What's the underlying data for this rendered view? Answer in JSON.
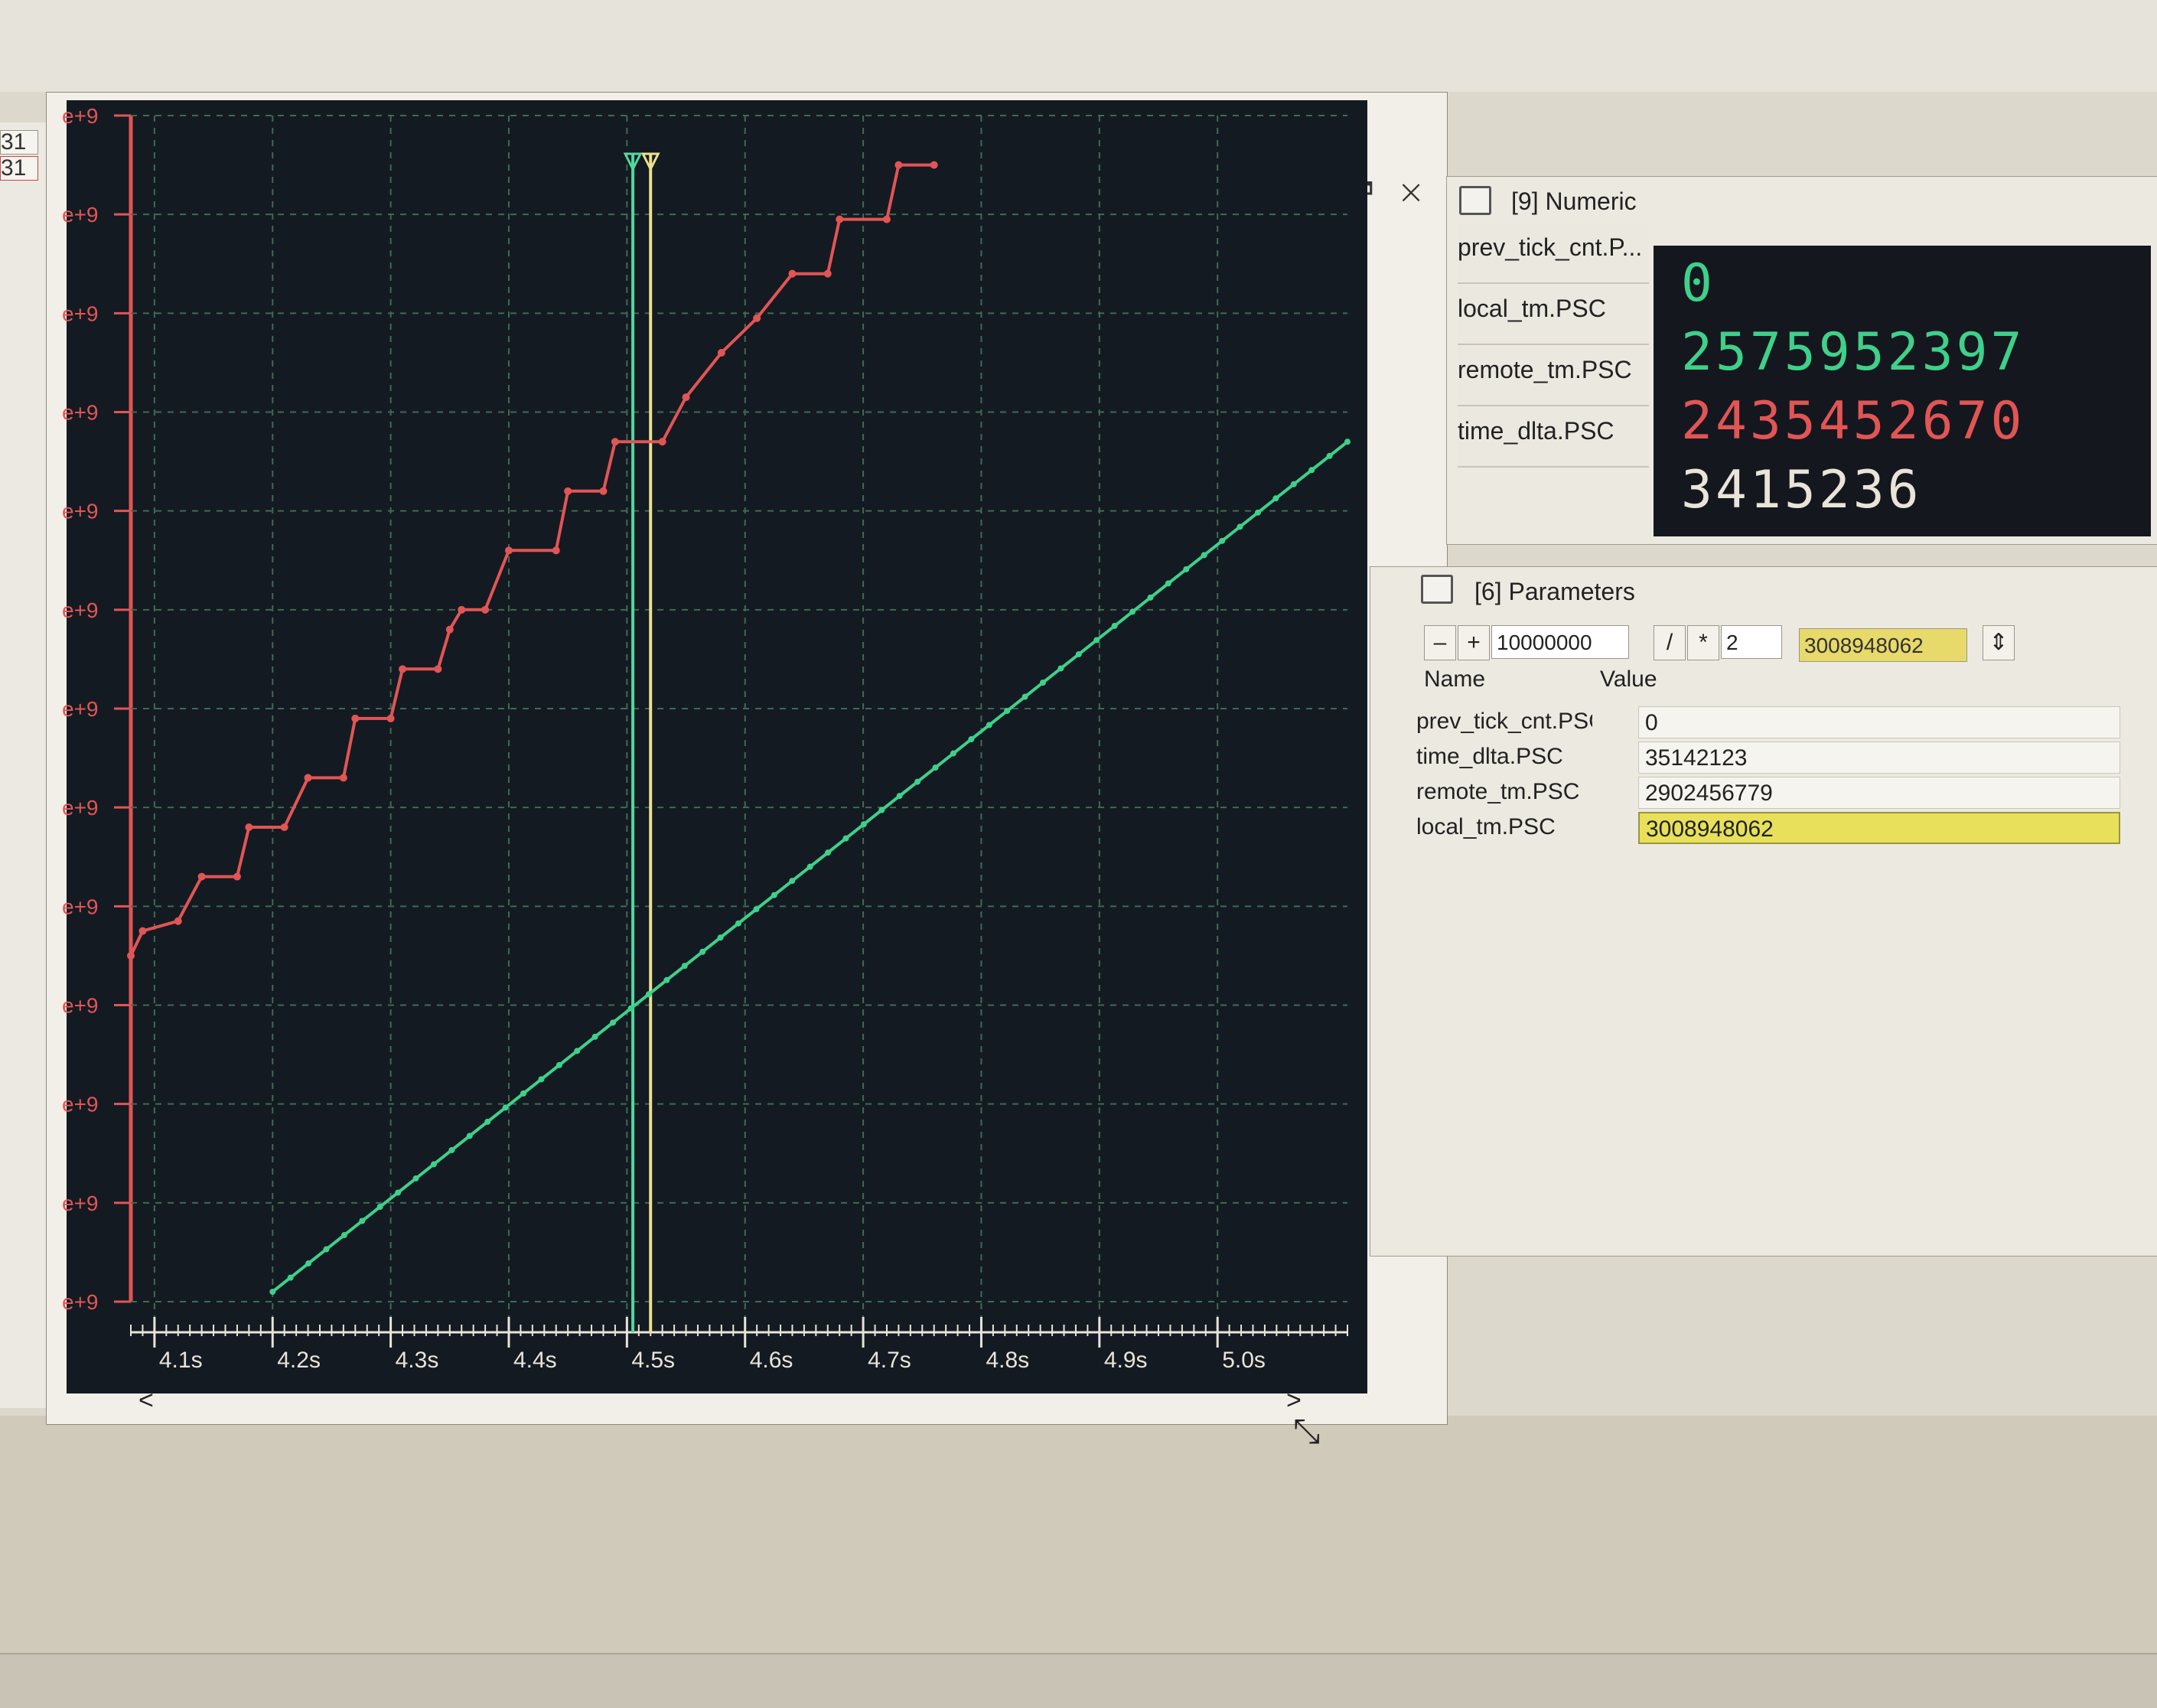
{
  "left_strip": {
    "tabs": [
      "31",
      "31"
    ]
  },
  "chart_window": {
    "controls": {
      "minimize": "–",
      "restore": "🗗",
      "close": "✕"
    },
    "scroll_left": "<",
    "scroll_right": ">"
  },
  "chart_data": {
    "type": "line",
    "x_tick_labels": [
      "4.1s",
      "4.2s",
      "4.3s",
      "4.4s",
      "4.5s",
      "4.6s",
      "4.7s",
      "4.8s",
      "4.9s",
      "5.0s"
    ],
    "x_range": [
      4.08,
      5.11
    ],
    "y_tick_labels": [
      "e+9",
      "e+9",
      "e+9",
      "e+9",
      "e+9",
      "e+9",
      "e+9",
      "e+9",
      "e+9",
      "e+9",
      "e+9",
      "e+9",
      "e+9"
    ],
    "y_range": [
      0,
      12
    ],
    "grid": true,
    "cursors": [
      {
        "x": 4.505,
        "color": "#4fd9a0"
      },
      {
        "x": 4.52,
        "color": "#e8e090"
      }
    ],
    "series": [
      {
        "color": "#e25555",
        "style": "steps",
        "points": [
          [
            4.08,
            3.5
          ],
          [
            4.09,
            3.75
          ],
          [
            4.12,
            3.85
          ],
          [
            4.14,
            4.3
          ],
          [
            4.17,
            4.3
          ],
          [
            4.18,
            4.8
          ],
          [
            4.21,
            4.8
          ],
          [
            4.23,
            5.3
          ],
          [
            4.26,
            5.3
          ],
          [
            4.27,
            5.9
          ],
          [
            4.3,
            5.9
          ],
          [
            4.31,
            6.4
          ],
          [
            4.34,
            6.4
          ],
          [
            4.35,
            6.8
          ],
          [
            4.36,
            7.0
          ],
          [
            4.38,
            7.0
          ],
          [
            4.4,
            7.6
          ],
          [
            4.44,
            7.6
          ],
          [
            4.45,
            8.2
          ],
          [
            4.48,
            8.2
          ],
          [
            4.49,
            8.7
          ],
          [
            4.53,
            8.7
          ],
          [
            4.55,
            9.15
          ],
          [
            4.58,
            9.6
          ],
          [
            4.61,
            9.95
          ],
          [
            4.64,
            10.4
          ],
          [
            4.67,
            10.4
          ],
          [
            4.68,
            10.95
          ],
          [
            4.72,
            10.95
          ],
          [
            4.73,
            11.5
          ],
          [
            4.76,
            11.5
          ]
        ]
      },
      {
        "color": "#3fd08a",
        "style": "line",
        "points": [
          [
            4.2,
            0.1
          ],
          [
            5.11,
            8.7
          ]
        ]
      }
    ]
  },
  "numeric_panel": {
    "title": "[9] Numeric",
    "labels": [
      "prev_tick_cnt.P...",
      "local_tm.PSC",
      "remote_tm.PSC",
      "time_dlta.PSC"
    ],
    "values": [
      "0",
      "2575952397",
      "2435452670",
      "3415236"
    ],
    "value_colors": [
      "#3fd08a",
      "#3fd08a",
      "#e25555",
      "#e8e4d8"
    ]
  },
  "params_panel": {
    "title": "[6] Parameters",
    "toolbar": {
      "minus": "–",
      "plus": "+",
      "step": "10000000",
      "divide": "/",
      "multiply": "*",
      "factor": "2",
      "current": "3008948062",
      "spin": "⇕"
    },
    "col_name": "Name",
    "col_value": "Value",
    "rows": [
      {
        "name": "prev_tick_cnt.PSC",
        "value": "0"
      },
      {
        "name": "time_dlta.PSC",
        "value": "35142123"
      },
      {
        "name": "remote_tm.PSC",
        "value": "2902456779"
      },
      {
        "name": "local_tm.PSC",
        "value": "3008948062"
      }
    ]
  }
}
